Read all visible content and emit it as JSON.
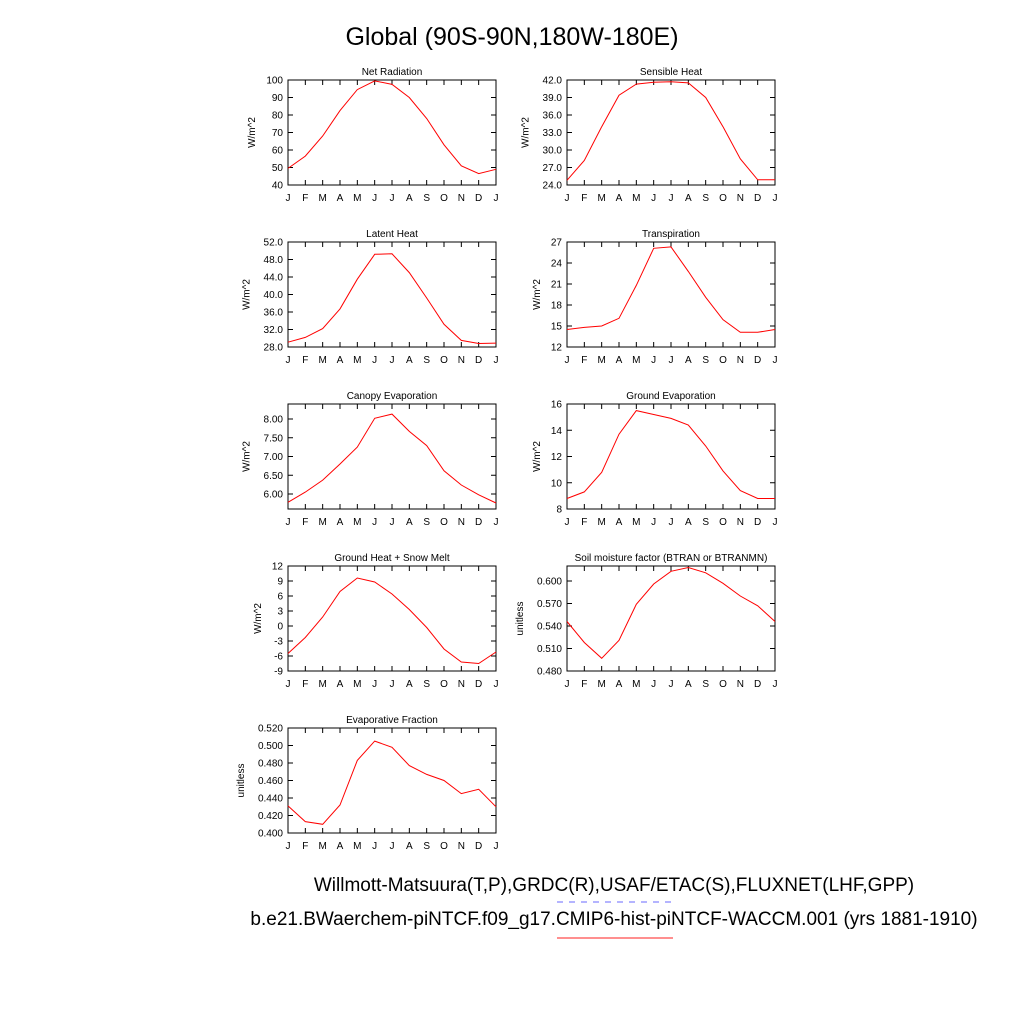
{
  "figure": {
    "title": "Global (90S-90N,180W-180E)",
    "footer_line1": "Willmott-Matsuura(T,P),GRDC(R),USAF/ETAC(S),FLUXNET(LHF,GPP)",
    "footer_line2": "b.e21.BWaerchem-piNTCF.f09_g17.CMIP6-hist-piNTCF-WACCM.001 (yrs 1881-1910)",
    "legend_colors": {
      "observations": "#6a6aff",
      "model": "#ff6a6a"
    }
  },
  "chart_data": [
    {
      "type": "line",
      "title": "Net Radiation",
      "ylabel": "W/m^2",
      "ylim": [
        40,
        100
      ],
      "yticks": [
        "40",
        "50",
        "60",
        "70",
        "80",
        "90",
        "100"
      ],
      "categories": [
        "J",
        "F",
        "M",
        "A",
        "M",
        "J",
        "J",
        "A",
        "S",
        "O",
        "N",
        "D",
        "J"
      ],
      "series": [
        {
          "color": "#ff0000",
          "values": [
            49.5,
            56.5,
            68,
            82.5,
            94.5,
            99.5,
            97.5,
            90,
            78,
            63,
            51,
            46.5,
            49
          ]
        }
      ]
    },
    {
      "type": "line",
      "title": "Sensible Heat",
      "ylabel": "W/m^2",
      "ylim": [
        24,
        42
      ],
      "yticks": [
        "24.0",
        "27.0",
        "30.0",
        "33.0",
        "36.0",
        "39.0",
        "42.0"
      ],
      "categories": [
        "J",
        "F",
        "M",
        "A",
        "M",
        "J",
        "J",
        "A",
        "S",
        "O",
        "N",
        "D",
        "J"
      ],
      "series": [
        {
          "color": "#ff0000",
          "values": [
            24.8,
            28.2,
            34,
            39.4,
            41.3,
            41.6,
            41.7,
            41.5,
            39,
            34,
            28.5,
            24.9,
            24.9
          ]
        }
      ]
    },
    {
      "type": "line",
      "title": "Latent Heat",
      "ylabel": "W/m^2",
      "ylim": [
        28,
        52
      ],
      "yticks": [
        "28.0",
        "32.0",
        "36.0",
        "40.0",
        "44.0",
        "48.0",
        "52.0"
      ],
      "categories": [
        "J",
        "F",
        "M",
        "A",
        "M",
        "J",
        "J",
        "A",
        "S",
        "O",
        "N",
        "D",
        "J"
      ],
      "series": [
        {
          "color": "#ff0000",
          "values": [
            29.1,
            30.2,
            32.2,
            36.7,
            43.5,
            49.2,
            49.3,
            45,
            39.2,
            33.2,
            29.5,
            28.8,
            28.9
          ]
        }
      ]
    },
    {
      "type": "line",
      "title": "Transpiration",
      "ylabel": "W/m^2",
      "ylim": [
        12,
        27
      ],
      "yticks": [
        "12",
        "15",
        "18",
        "21",
        "24",
        "27"
      ],
      "categories": [
        "J",
        "F",
        "M",
        "A",
        "M",
        "J",
        "J",
        "A",
        "S",
        "O",
        "N",
        "D",
        "J"
      ],
      "series": [
        {
          "color": "#ff0000",
          "values": [
            14.5,
            14.8,
            15,
            16.1,
            20.8,
            26.1,
            26.3,
            22.8,
            19.1,
            15.9,
            14.1,
            14.1,
            14.5
          ]
        }
      ]
    },
    {
      "type": "line",
      "title": "Canopy Evaporation",
      "ylabel": "W/m^2",
      "ylim": [
        5.6,
        8.4
      ],
      "yticks": [
        "6.00",
        "6.50",
        "7.00",
        "7.50",
        "8.00"
      ],
      "yticks_values": [
        6.0,
        6.5,
        7.0,
        7.5,
        8.0
      ],
      "categories": [
        "J",
        "F",
        "M",
        "A",
        "M",
        "J",
        "J",
        "A",
        "S",
        "O",
        "N",
        "D",
        "J"
      ],
      "series": [
        {
          "color": "#ff0000",
          "values": [
            5.78,
            6.05,
            6.37,
            6.8,
            7.25,
            8.02,
            8.13,
            7.67,
            7.29,
            6.62,
            6.24,
            5.98,
            5.76
          ]
        }
      ]
    },
    {
      "type": "line",
      "title": "Ground Evaporation",
      "ylabel": "W/m^2",
      "ylim": [
        8,
        16
      ],
      "yticks": [
        "8",
        "10",
        "12",
        "14",
        "16"
      ],
      "categories": [
        "J",
        "F",
        "M",
        "A",
        "M",
        "J",
        "J",
        "A",
        "S",
        "O",
        "N",
        "D",
        "J"
      ],
      "series": [
        {
          "color": "#ff0000",
          "values": [
            8.8,
            9.3,
            10.8,
            13.7,
            15.5,
            15.2,
            14.9,
            14.4,
            12.8,
            10.9,
            9.4,
            8.8,
            8.8
          ]
        }
      ]
    },
    {
      "type": "line",
      "title": "Ground Heat + Snow Melt",
      "ylabel": "W/m^2",
      "ylim": [
        -9,
        12
      ],
      "yticks": [
        "-9",
        "-6",
        "-3",
        "0",
        "3",
        "6",
        "9",
        "12"
      ],
      "categories": [
        "J",
        "F",
        "M",
        "A",
        "M",
        "J",
        "J",
        "A",
        "S",
        "O",
        "N",
        "D",
        "J"
      ],
      "series": [
        {
          "color": "#ff0000",
          "values": [
            -5.5,
            -2.3,
            1.8,
            6.9,
            9.6,
            8.8,
            6.4,
            3.3,
            -0.3,
            -4.6,
            -7.2,
            -7.5,
            -5.2
          ]
        }
      ]
    },
    {
      "type": "line",
      "title": "Soil moisture factor (BTRAN or BTRANMN)",
      "ylabel": "unitless",
      "ylim": [
        0.48,
        0.62
      ],
      "yticks": [
        "0.480",
        "0.510",
        "0.540",
        "0.570",
        "0.600"
      ],
      "yticks_values": [
        0.48,
        0.51,
        0.54,
        0.57,
        0.6
      ],
      "categories": [
        "J",
        "F",
        "M",
        "A",
        "M",
        "J",
        "J",
        "A",
        "S",
        "O",
        "N",
        "D",
        "J"
      ],
      "series": [
        {
          "color": "#ff0000",
          "values": [
            0.546,
            0.518,
            0.497,
            0.521,
            0.569,
            0.596,
            0.613,
            0.618,
            0.611,
            0.597,
            0.58,
            0.567,
            0.546
          ]
        }
      ]
    },
    {
      "type": "line",
      "title": "Evaporative Fraction",
      "ylabel": "unitless",
      "ylim": [
        0.4,
        0.52
      ],
      "yticks": [
        "0.400",
        "0.420",
        "0.440",
        "0.460",
        "0.480",
        "0.500",
        "0.520"
      ],
      "categories": [
        "J",
        "F",
        "M",
        "A",
        "M",
        "J",
        "J",
        "A",
        "S",
        "O",
        "N",
        "D",
        "J"
      ],
      "series": [
        {
          "color": "#ff0000",
          "values": [
            0.431,
            0.413,
            0.41,
            0.432,
            0.483,
            0.505,
            0.498,
            0.477,
            0.467,
            0.46,
            0.445,
            0.45,
            0.43
          ]
        }
      ]
    }
  ]
}
